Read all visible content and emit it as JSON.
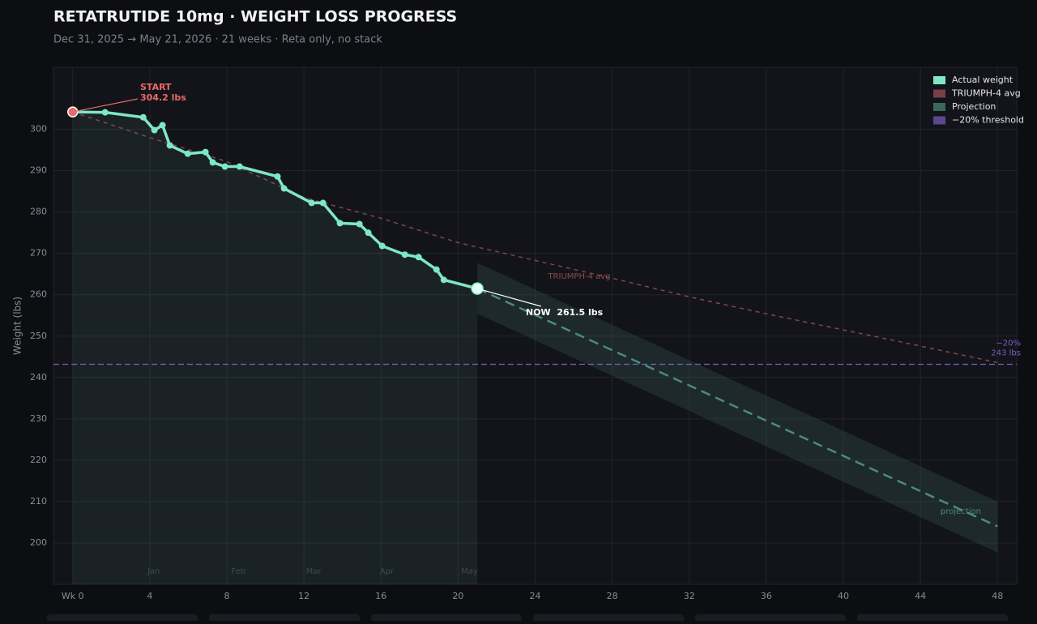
{
  "chart_data": {
    "type": "line",
    "title": "RETATRUTIDE 10mg  ·  WEIGHT LOSS PROGRESS",
    "subtitle": "Dec 31, 2025 → May 21, 2026  ·  21 weeks  ·  Reta only, no stack",
    "y_label": "Weight (lbs)",
    "xlim": [
      -1,
      49
    ],
    "ylim": [
      190,
      315
    ],
    "xticks": [
      {
        "value": 0,
        "label": "Wk 0"
      },
      4,
      8,
      12,
      16,
      20,
      24,
      28,
      32,
      36,
      40,
      44,
      48
    ],
    "yticks": [
      200,
      210,
      220,
      230,
      240,
      250,
      260,
      270,
      280,
      290,
      300
    ],
    "grid": true,
    "legend": "upper right",
    "months": [
      "Jan",
      "Feb",
      "Mar",
      "Apr",
      "May"
    ],
    "month_x": [
      4.2,
      8.6,
      12.5,
      16.3,
      20.6
    ],
    "series": [
      {
        "name": "Actual weight",
        "color": "#7ee8c4",
        "x": [
          0,
          1.68,
          3.66,
          4.24,
          4.66,
          5.04,
          5.97,
          6.89,
          7.27,
          7.9,
          8.66,
          10.63,
          10.97,
          12.4,
          12.99,
          13.87,
          14.88,
          15.34,
          16.06,
          17.24,
          17.95,
          18.88,
          19.26,
          21
        ],
        "values": [
          304.2,
          304.1,
          302.9,
          299.8,
          301.0,
          296.1,
          294.1,
          294.5,
          292.0,
          291.0,
          291.0,
          288.6,
          285.7,
          282.2,
          282.2,
          277.3,
          277.1,
          275.0,
          271.8,
          269.7,
          269.1,
          266.1,
          263.6,
          261.5
        ]
      },
      {
        "name": "TRIUMPH-4 avg",
        "color": "#a0525a",
        "x": [
          0,
          4,
          8,
          12,
          16,
          20,
          24,
          28,
          32,
          36,
          40,
          44,
          48
        ],
        "values": [
          304.2,
          298,
          292.2,
          283.5,
          278.5,
          272.6,
          268.3,
          264,
          259.5,
          255.4,
          251.5,
          247.6,
          243.6
        ]
      },
      {
        "name": "Projection",
        "color": "#4e8a78",
        "x": [
          21,
          48
        ],
        "values": [
          261.5,
          204
        ],
        "band_upper": [
          267.7,
          210
        ],
        "band_lower": [
          255.4,
          197.7
        ]
      }
    ],
    "threshold": {
      "name": "−20% threshold",
      "color": "#7a5fc0",
      "value": 243.2,
      "labels": [
        "−20%",
        "243 lbs"
      ]
    },
    "annotations": [
      "START",
      "304.2 lbs",
      "NOW  261.5 lbs",
      "TRIUMPH-4 avg",
      "projection"
    ]
  }
}
